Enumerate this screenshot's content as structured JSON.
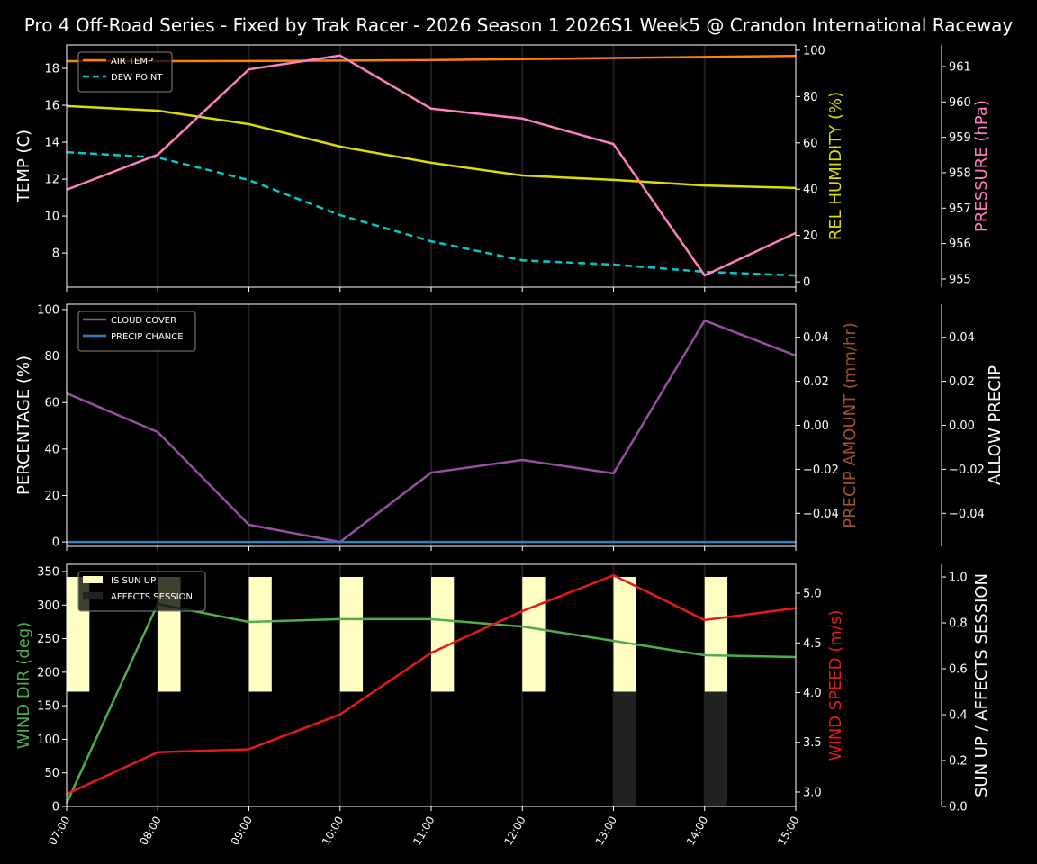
{
  "title": "Pro 4 Off-Road Series - Fixed by Trak Racer - 2026 Season 1 2026S1 Week5 @ Crandon International Raceway",
  "chart_data": [
    {
      "type": "line",
      "x": [
        "07:00",
        "08:00",
        "09:00",
        "10:00",
        "11:00",
        "12:00",
        "13:00",
        "14:00",
        "15:00"
      ],
      "axes": {
        "left": {
          "label": "TEMP (C)",
          "range": [
            6.15,
            19.27
          ],
          "ticks": [
            8,
            10,
            12,
            14,
            16,
            18
          ],
          "color": "#ffffff"
        },
        "right": {
          "label": "REL HUMIDITY (%)",
          "range": [
            -2.3,
            102.3
          ],
          "ticks": [
            0,
            20,
            40,
            60,
            80,
            100
          ],
          "color": "#dddd00"
        },
        "right2": {
          "label": "PRESSURE (hPa)",
          "range": [
            954.77,
            961.61
          ],
          "ticks": [
            955,
            956,
            957,
            958,
            959,
            960,
            961
          ],
          "color": "#ff80c0"
        }
      },
      "legend": {
        "placement": "upper-left"
      },
      "series": [
        {
          "name": "AIR TEMP",
          "axis": "left",
          "color": "#ff7f0e",
          "dash": false,
          "legend": true,
          "values": [
            18.39,
            18.39,
            18.4,
            18.42,
            18.45,
            18.5,
            18.56,
            18.62,
            18.68
          ]
        },
        {
          "name": "DEW POINT",
          "axis": "left",
          "color": "#00cccc",
          "dash": true,
          "legend": true,
          "values": [
            13.46,
            13.17,
            11.95,
            10.05,
            8.63,
            7.6,
            7.37,
            6.98,
            6.78
          ]
        },
        {
          "name": "REL HUMIDITY",
          "axis": "right",
          "color": "#dddd00",
          "dash": false,
          "legend": false,
          "values": [
            75.9,
            73.9,
            68.1,
            58.4,
            51.4,
            45.9,
            44.0,
            41.6,
            40.5
          ]
        },
        {
          "name": "PRESSURE",
          "axis": "right2",
          "color": "#ff80c0",
          "dash": false,
          "legend": false,
          "values": [
            957.52,
            958.51,
            960.92,
            961.31,
            959.81,
            959.53,
            958.81,
            955.1,
            956.3
          ]
        }
      ]
    },
    {
      "type": "line",
      "x": [
        "07:00",
        "08:00",
        "09:00",
        "10:00",
        "11:00",
        "12:00",
        "13:00",
        "14:00",
        "15:00"
      ],
      "axes": {
        "left": {
          "label": "PERCENTAGE (%)",
          "range": [
            -1.9,
            102.3
          ],
          "ticks": [
            0,
            20,
            40,
            60,
            80,
            100
          ],
          "color": "#ffffff"
        },
        "right": {
          "label": "PRECIP AMOUNT (mm/hr)",
          "range": [
            -0.055,
            0.055
          ],
          "ticks": [
            -0.04,
            -0.02,
            0.0,
            0.02,
            0.04
          ],
          "tick_labels": [
            "−0.04",
            "−0.02",
            "0.00",
            "0.02",
            "0.04"
          ],
          "color": "#a0522d"
        },
        "right2": {
          "label": "ALLOW PRECIP",
          "range": [
            -0.055,
            0.055
          ],
          "ticks": [
            -0.04,
            -0.02,
            0.0,
            0.02,
            0.04
          ],
          "tick_labels": [
            "−0.04",
            "−0.02",
            "0.00",
            "0.02",
            "0.04"
          ],
          "color": "#ffffff"
        }
      },
      "legend": {
        "placement": "upper-left"
      },
      "series": [
        {
          "name": "CLOUD COVER",
          "axis": "left",
          "color": "#984ea3",
          "dash": false,
          "legend": true,
          "values": [
            64,
            47.3,
            7.4,
            0,
            29.8,
            35.3,
            29.5,
            95.3,
            80.2
          ]
        },
        {
          "name": "PRECIP CHANCE",
          "axis": "left",
          "color": "#377eb8",
          "dash": false,
          "legend": true,
          "values": [
            0,
            0,
            0,
            0,
            0,
            0,
            0,
            0,
            0
          ]
        }
      ]
    },
    {
      "type": "line",
      "x": [
        "07:00",
        "08:00",
        "09:00",
        "10:00",
        "11:00",
        "12:00",
        "13:00",
        "14:00",
        "15:00"
      ],
      "axes": {
        "left": {
          "label": "WIND DIR (deg)",
          "range": [
            0,
            360.7
          ],
          "ticks": [
            0,
            50,
            100,
            150,
            200,
            250,
            300,
            350
          ],
          "color": "#4daf4a"
        },
        "right": {
          "label": "WIND SPEED (m/s)",
          "range": [
            2.855,
            5.29
          ],
          "ticks": [
            3.0,
            3.5,
            4.0,
            4.5,
            5.0
          ],
          "tick_labels": [
            "3.0",
            "3.5",
            "4.0",
            "4.5",
            "5.0"
          ],
          "color": "#e41a1c"
        },
        "right2": {
          "label": "SUN UP / AFFECTS SESSION",
          "range": [
            0,
            1.055
          ],
          "ticks": [
            0,
            0.2,
            0.4,
            0.6,
            0.8,
            1.0
          ],
          "tick_labels": [
            "0.0",
            "0.2",
            "0.4",
            "0.6",
            "0.8",
            "1.0"
          ],
          "color": "#ffffff"
        }
      },
      "legend": {
        "placement": "upper-left"
      },
      "bars": [
        {
          "name": "IS SUN UP",
          "color": "#ffffc4",
          "from": 0.5,
          "to": 1.0,
          "values": [
            1,
            1,
            1,
            1,
            1,
            1,
            1,
            1,
            0
          ]
        },
        {
          "name": "AFFECTS SESSION",
          "color": "#222222",
          "from": 0.0,
          "to": 0.5,
          "values": [
            0,
            0,
            0,
            0,
            0,
            0,
            1,
            1,
            0
          ]
        }
      ],
      "series": [
        {
          "name": "WIND DIR",
          "axis": "left",
          "color": "#4daf4a",
          "dash": false,
          "legend": false,
          "values": [
            5,
            301.7,
            274.9,
            279,
            279,
            268,
            246.7,
            225.3,
            222.6
          ]
        },
        {
          "name": "WIND SPEED",
          "axis": "right",
          "color": "#e41a1c",
          "dash": false,
          "legend": false,
          "values": [
            2.98,
            3.4,
            3.43,
            3.78,
            4.4,
            4.82,
            5.18,
            4.73,
            4.85
          ]
        }
      ]
    }
  ]
}
